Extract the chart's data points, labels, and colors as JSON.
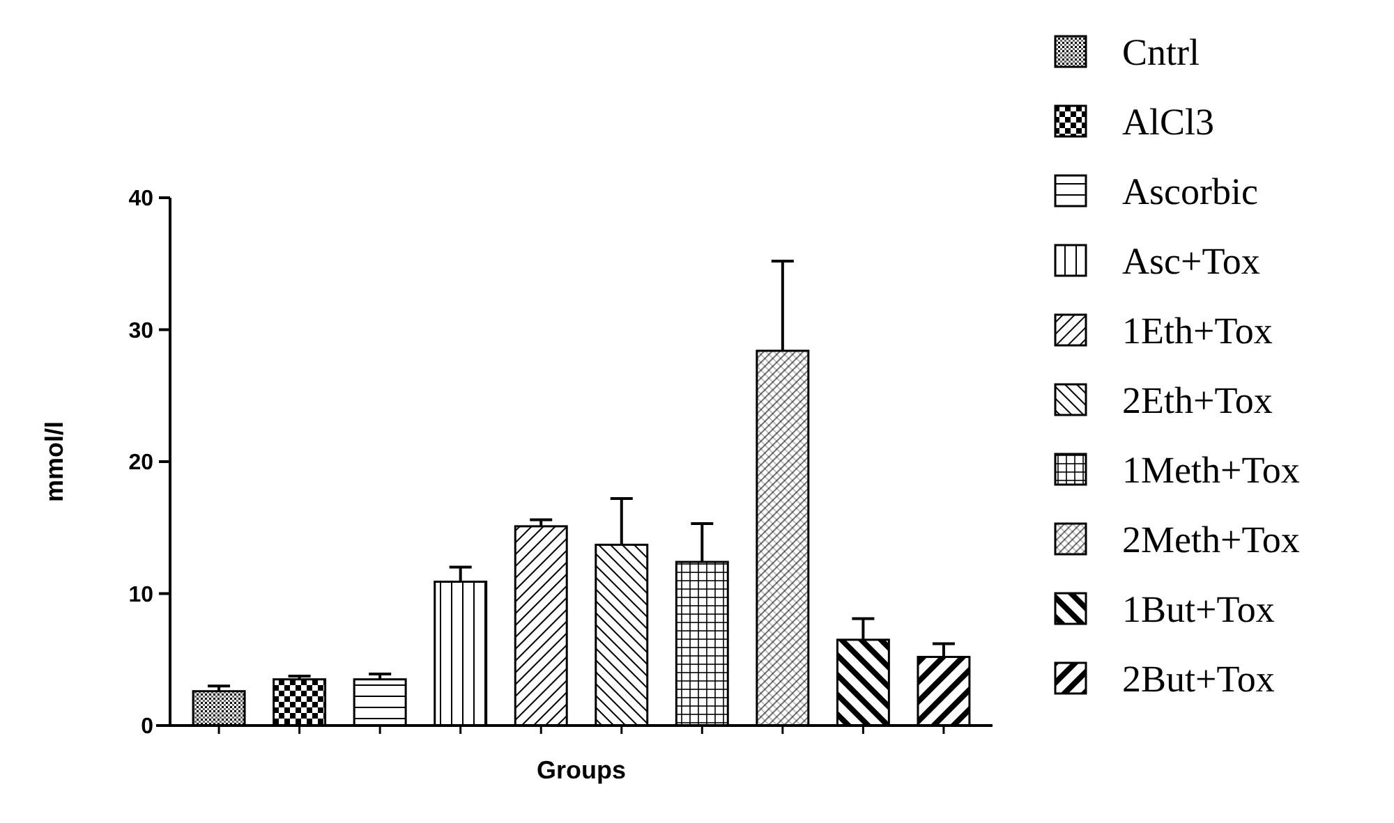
{
  "chart_data": {
    "type": "bar",
    "xlabel": "Groups",
    "ylabel": "mmol/l",
    "categories": [
      null,
      null,
      null,
      null,
      null,
      null,
      null,
      null,
      null,
      null
    ],
    "series": [
      {
        "name": "Cntrl",
        "color": "#000000",
        "values": [
          2.6,
          null,
          null,
          null,
          null,
          null,
          null,
          null,
          null,
          null
        ],
        "errors": [
          [
            2.6,
            3.0
          ],
          null,
          null,
          null,
          null,
          null,
          null,
          null,
          null,
          null
        ]
      },
      {
        "name": "AlCl3",
        "color": "#000000",
        "values": [
          null,
          3.5,
          null,
          null,
          null,
          null,
          null,
          null,
          null,
          null
        ],
        "errors": [
          null,
          [
            3.5,
            3.75
          ],
          null,
          null,
          null,
          null,
          null,
          null,
          null,
          null
        ]
      },
      {
        "name": "Ascorbic",
        "color": "#000000",
        "values": [
          null,
          null,
          3.5,
          null,
          null,
          null,
          null,
          null,
          null,
          null
        ],
        "errors": [
          null,
          null,
          [
            3.5,
            3.9
          ],
          null,
          null,
          null,
          null,
          null,
          null,
          null
        ]
      },
      {
        "name": "Asc+Tox",
        "color": "#000000",
        "values": [
          null,
          null,
          null,
          10.9,
          null,
          null,
          null,
          null,
          null,
          null
        ],
        "errors": [
          null,
          null,
          null,
          [
            10.9,
            12.0
          ],
          null,
          null,
          null,
          null,
          null,
          null
        ]
      },
      {
        "name": "1Eth+Tox",
        "color": "#000000",
        "values": [
          null,
          null,
          null,
          null,
          15.1,
          null,
          null,
          null,
          null,
          null
        ],
        "errors": [
          null,
          null,
          null,
          null,
          [
            15.1,
            15.6
          ],
          null,
          null,
          null,
          null,
          null
        ]
      },
      {
        "name": "2Eth+Tox",
        "color": "#000000",
        "values": [
          null,
          null,
          null,
          null,
          null,
          13.7,
          null,
          null,
          null,
          null
        ],
        "errors": [
          null,
          null,
          null,
          null,
          null,
          [
            13.7,
            17.2
          ],
          null,
          null,
          null,
          null
        ]
      },
      {
        "name": "1Meth+Tox",
        "color": "#000000",
        "values": [
          null,
          null,
          null,
          null,
          null,
          null,
          12.4,
          null,
          null,
          null
        ],
        "errors": [
          null,
          null,
          null,
          null,
          null,
          null,
          [
            12.4,
            15.3
          ],
          null,
          null,
          null
        ]
      },
      {
        "name": "2Meth+Tox",
        "color": "#000000",
        "values": [
          null,
          null,
          null,
          null,
          null,
          null,
          null,
          28.4,
          null,
          null
        ],
        "errors": [
          null,
          null,
          null,
          null,
          null,
          null,
          null,
          [
            28.4,
            35.2
          ],
          null,
          null
        ]
      },
      {
        "name": "1But+Tox",
        "color": "#000000",
        "values": [
          null,
          null,
          null,
          null,
          null,
          null,
          null,
          null,
          6.5,
          null
        ],
        "errors": [
          null,
          null,
          null,
          null,
          null,
          null,
          null,
          null,
          [
            6.5,
            8.1
          ],
          null
        ]
      },
      {
        "name": "2But+Tox",
        "color": "#000000",
        "values": [
          null,
          null,
          null,
          null,
          null,
          null,
          null,
          null,
          null,
          5.2
        ],
        "errors": [
          null,
          null,
          null,
          null,
          null,
          null,
          null,
          null,
          null,
          [
            5.2,
            6.2
          ]
        ]
      }
    ],
    "ylim": [
      0,
      40
    ],
    "yticks": [
      0,
      10,
      20,
      30,
      40
    ],
    "legend": "right"
  }
}
